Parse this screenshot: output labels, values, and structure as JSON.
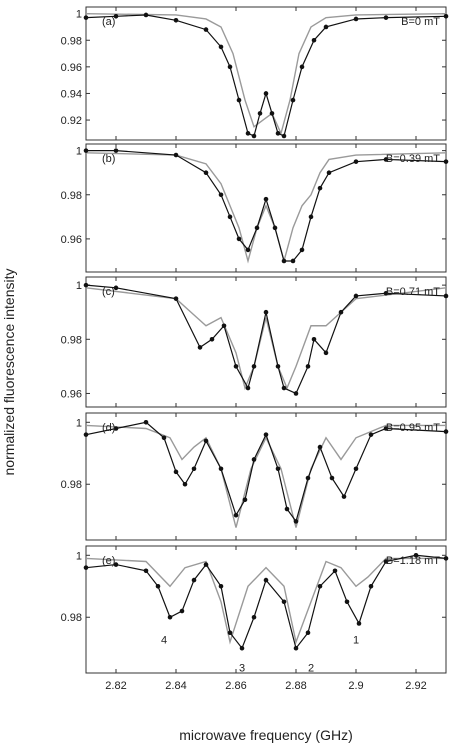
{
  "chart_data": {
    "type": "line",
    "xlabel": "microwave frequency (GHz)",
    "ylabel": "normalized fluorescence intensity",
    "xlim": [
      2.81,
      2.93
    ],
    "xticks": [
      2.82,
      2.84,
      2.86,
      2.88,
      2.9,
      2.92
    ],
    "grid": false,
    "colors": {
      "experiment": "#111111",
      "simulation": "#9a9a9a"
    },
    "panels": [
      {
        "label": "(a)",
        "field": "B=0 mT",
        "ylim": [
          0.905,
          1.005
        ],
        "yticks": [
          0.92,
          0.94,
          0.96,
          0.98,
          1
        ],
        "series": [
          {
            "x": [
              2.81,
              2.82,
              2.83,
              2.84,
              2.85,
              2.855,
              2.858,
              2.861,
              2.864,
              2.866,
              2.868,
              2.87,
              2.872,
              2.874,
              2.876,
              2.879,
              2.882,
              2.886,
              2.89,
              2.9,
              2.91,
              2.93
            ],
            "y": [
              0.997,
              0.998,
              0.999,
              0.995,
              0.988,
              0.975,
              0.96,
              0.935,
              0.91,
              0.908,
              0.925,
              0.94,
              0.925,
              0.91,
              0.908,
              0.935,
              0.96,
              0.98,
              0.99,
              0.996,
              0.997,
              0.998
            ]
          },
          {
            "x": [
              2.81,
              2.84,
              2.85,
              2.855,
              2.859,
              2.863,
              2.866,
              2.869,
              2.872,
              2.875,
              2.878,
              2.881,
              2.885,
              2.89,
              2.9,
              2.93
            ],
            "y": [
              1.0,
              0.999,
              0.996,
              0.99,
              0.97,
              0.935,
              0.915,
              0.92,
              0.925,
              0.91,
              0.935,
              0.97,
              0.99,
              0.997,
              0.999,
              1.0
            ]
          }
        ]
      },
      {
        "label": "(b)",
        "field": "B=0.39 mT",
        "ylim": [
          0.945,
          1.003
        ],
        "yticks": [
          0.96,
          0.98,
          1
        ],
        "series": [
          {
            "x": [
              2.81,
              2.82,
              2.84,
              2.85,
              2.855,
              2.858,
              2.861,
              2.864,
              2.867,
              2.87,
              2.873,
              2.876,
              2.879,
              2.882,
              2.885,
              2.888,
              2.891,
              2.9,
              2.91,
              2.93
            ],
            "y": [
              1.0,
              1.0,
              0.998,
              0.99,
              0.98,
              0.97,
              0.96,
              0.955,
              0.965,
              0.978,
              0.965,
              0.95,
              0.95,
              0.955,
              0.97,
              0.983,
              0.99,
              0.995,
              0.996,
              0.995
            ]
          },
          {
            "x": [
              2.81,
              2.84,
              2.85,
              2.855,
              2.858,
              2.861,
              2.864,
              2.867,
              2.87,
              2.873,
              2.876,
              2.879,
              2.882,
              2.885,
              2.888,
              2.891,
              2.9,
              2.93
            ],
            "y": [
              0.999,
              0.998,
              0.994,
              0.985,
              0.975,
              0.965,
              0.95,
              0.965,
              0.975,
              0.965,
              0.95,
              0.965,
              0.975,
              0.98,
              0.99,
              0.996,
              0.998,
              0.999
            ]
          }
        ]
      },
      {
        "label": "(c)",
        "field": "B=0.71 mT",
        "ylim": [
          0.955,
          1.003
        ],
        "yticks": [
          0.96,
          0.98,
          1
        ],
        "series": [
          {
            "x": [
              2.81,
              2.82,
              2.84,
              2.848,
              2.852,
              2.856,
              2.86,
              2.864,
              2.866,
              2.87,
              2.874,
              2.876,
              2.88,
              2.884,
              2.886,
              2.89,
              2.895,
              2.9,
              2.91,
              2.93
            ],
            "y": [
              1.0,
              0.999,
              0.995,
              0.977,
              0.98,
              0.985,
              0.97,
              0.962,
              0.97,
              0.99,
              0.97,
              0.962,
              0.96,
              0.97,
              0.98,
              0.975,
              0.99,
              0.996,
              0.997,
              0.996
            ]
          },
          {
            "x": [
              2.81,
              2.84,
              2.845,
              2.85,
              2.855,
              2.86,
              2.863,
              2.866,
              2.87,
              2.874,
              2.877,
              2.88,
              2.885,
              2.89,
              2.895,
              2.9,
              2.93
            ],
            "y": [
              0.999,
              0.995,
              0.99,
              0.985,
              0.988,
              0.975,
              0.962,
              0.97,
              0.988,
              0.97,
              0.962,
              0.97,
              0.985,
              0.985,
              0.99,
              0.995,
              0.999
            ]
          }
        ]
      },
      {
        "label": "(d)",
        "field": "B=0.95 mT",
        "ylim": [
          0.962,
          1.003
        ],
        "yticks": [
          0.98,
          1
        ],
        "series": [
          {
            "x": [
              2.81,
              2.82,
              2.83,
              2.836,
              2.84,
              2.843,
              2.846,
              2.85,
              2.855,
              2.86,
              2.863,
              2.866,
              2.87,
              2.874,
              2.877,
              2.88,
              2.884,
              2.888,
              2.892,
              2.896,
              2.9,
              2.905,
              2.91,
              2.93
            ],
            "y": [
              0.996,
              0.998,
              1.0,
              0.995,
              0.984,
              0.98,
              0.985,
              0.994,
              0.985,
              0.97,
              0.975,
              0.988,
              0.996,
              0.985,
              0.972,
              0.968,
              0.982,
              0.992,
              0.982,
              0.976,
              0.985,
              0.996,
              0.998,
              0.997
            ]
          },
          {
            "x": [
              2.81,
              2.83,
              2.838,
              2.842,
              2.846,
              2.85,
              2.855,
              2.86,
              2.865,
              2.87,
              2.875,
              2.88,
              2.885,
              2.89,
              2.895,
              2.9,
              2.91,
              2.93
            ],
            "y": [
              0.999,
              0.998,
              0.995,
              0.988,
              0.992,
              0.995,
              0.985,
              0.966,
              0.985,
              0.995,
              0.985,
              0.966,
              0.985,
              0.995,
              0.988,
              0.995,
              0.999,
              0.999
            ]
          }
        ]
      },
      {
        "label": "(e)",
        "field": "B=1.18 mT",
        "ylim": [
          0.962,
          1.003
        ],
        "yticks": [
          0.98,
          1
        ],
        "series": [
          {
            "x": [
              2.81,
              2.82,
              2.83,
              2.834,
              2.838,
              2.842,
              2.846,
              2.85,
              2.855,
              2.858,
              2.862,
              2.866,
              2.87,
              2.876,
              2.88,
              2.884,
              2.888,
              2.893,
              2.897,
              2.901,
              2.905,
              2.91,
              2.92,
              2.93
            ],
            "y": [
              0.996,
              0.997,
              0.995,
              0.99,
              0.98,
              0.982,
              0.992,
              0.997,
              0.99,
              0.975,
              0.97,
              0.98,
              0.992,
              0.985,
              0.97,
              0.975,
              0.99,
              0.995,
              0.985,
              0.978,
              0.99,
              0.998,
              1.0,
              0.999
            ]
          },
          {
            "x": [
              2.81,
              2.83,
              2.835,
              2.838,
              2.843,
              2.85,
              2.855,
              2.858,
              2.864,
              2.87,
              2.876,
              2.88,
              2.885,
              2.89,
              2.895,
              2.9,
              2.904,
              2.91,
              2.93
            ],
            "y": [
              0.999,
              0.998,
              0.993,
              0.99,
              0.996,
              0.998,
              0.985,
              0.972,
              0.99,
              0.996,
              0.99,
              0.972,
              0.985,
              0.998,
              0.996,
              0.99,
              0.993,
              0.999,
              0.999
            ]
          }
        ],
        "annotations": [
          {
            "text": "4",
            "x": 2.836,
            "y": 0.976
          },
          {
            "text": "3",
            "x": 2.862,
            "y": 0.967
          },
          {
            "text": "2",
            "x": 2.885,
            "y": 0.967
          },
          {
            "text": "1",
            "x": 2.9,
            "y": 0.976
          }
        ]
      }
    ]
  }
}
